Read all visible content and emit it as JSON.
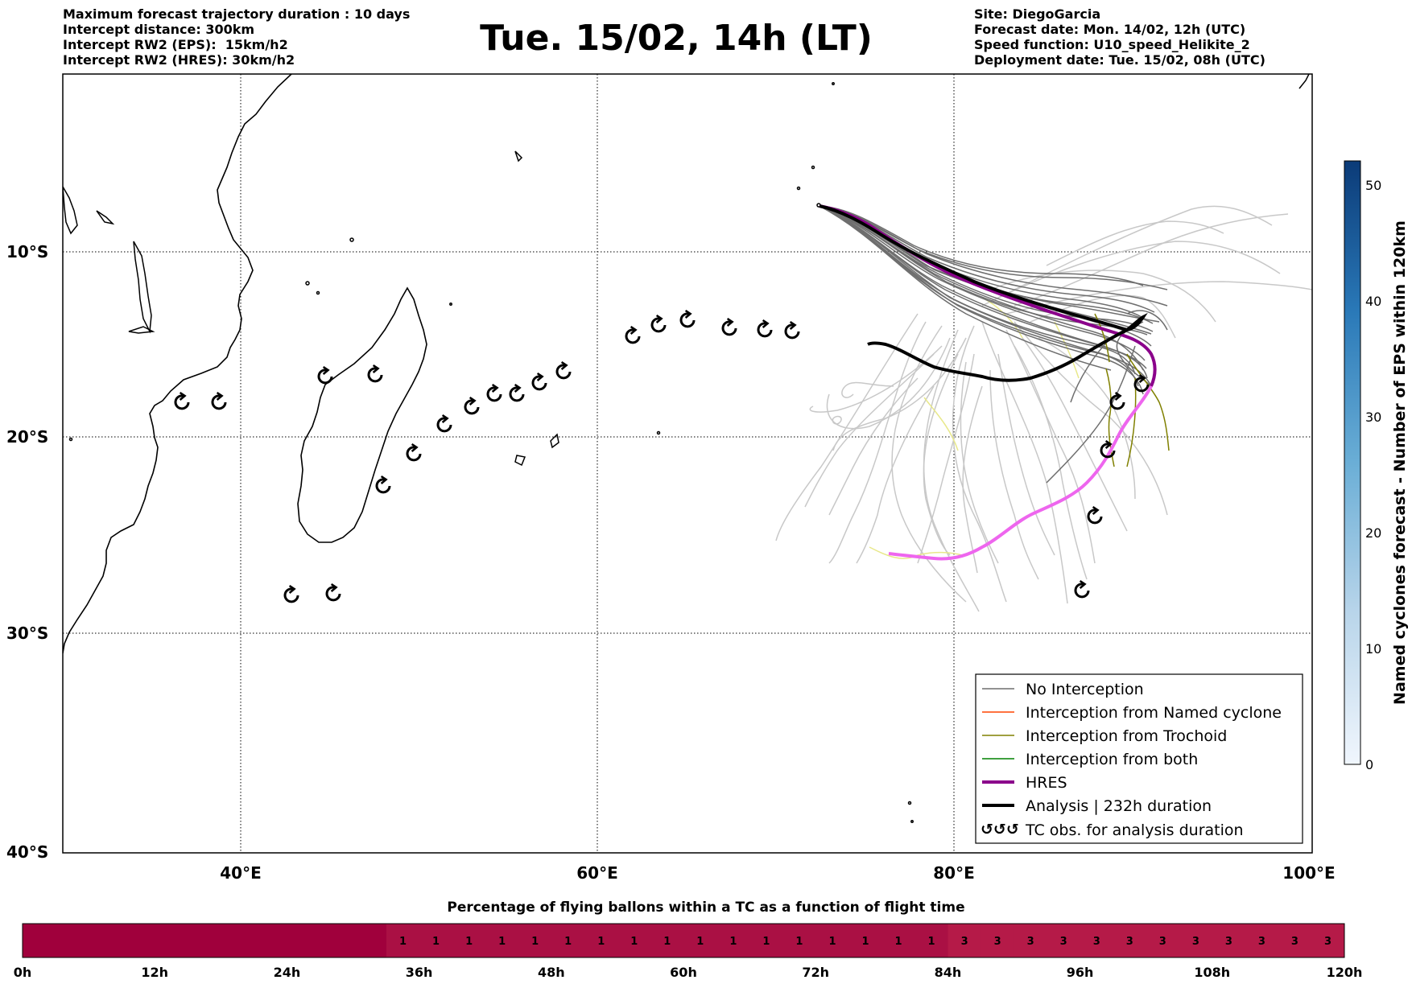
{
  "header": {
    "left_lines": [
      "Maximum forecast trajectory duration : 10 days",
      "Intercept distance: 300km",
      "Intercept RW2 (EPS):  15km/h2",
      "Intercept RW2 (HRES): 30km/h2"
    ],
    "title": "Tue. 15/02, 14h (LT)",
    "right_lines": [
      "Site: DiegoGarcia",
      "Forecast date: Mon. 14/02, 12h (UTC)",
      "Speed function: U10_speed_Helikite_2",
      "Deployment date: Tue. 15/02, 08h (UTC)"
    ]
  },
  "map": {
    "lat_labels": [
      "10°S",
      "20°S",
      "30°S",
      "40°S"
    ],
    "lon_labels": [
      "40°E",
      "60°E",
      "80°E",
      "100°E"
    ],
    "colors": {
      "no_interception": "#6e6e6e",
      "faint_members": "#c8c8c8",
      "named_cyclone": "#ff4500",
      "trochoid": "#808000",
      "both": "#008000",
      "hres": "#8b008b",
      "hres_late": "#ee66ee",
      "analysis": "#000000"
    }
  },
  "legend": {
    "items": [
      "No Interception",
      "Interception from Named cyclone",
      "Interception from Trochoid",
      "Interception from both",
      "HRES",
      "Analysis | 232h duration",
      "TC obs. for analysis duration"
    ],
    "tc_symbol": "↺↺↺"
  },
  "colorbar": {
    "title": "Named cyclones forecast - Number of EPS within 120km",
    "ticks": [
      "0",
      "10",
      "20",
      "30",
      "40",
      "50"
    ],
    "range": [
      0,
      52
    ]
  },
  "timebar": {
    "title": "Percentage of flying ballons within a TC as a function of flight time",
    "ticks": [
      "0h",
      "12h",
      "24h",
      "36h",
      "48h",
      "60h",
      "72h",
      "84h",
      "96h",
      "108h",
      "120h"
    ],
    "cells": [
      "",
      "",
      "",
      "",
      "",
      "",
      "",
      "",
      "",
      "",
      "1",
      "1",
      "1",
      "1",
      "1",
      "1",
      "1",
      "1",
      "1",
      "1",
      "1",
      "1",
      "1",
      "1",
      "1",
      "1",
      "1",
      "3",
      "3",
      "3",
      "3",
      "3",
      "3",
      "3",
      "3",
      "3",
      "3",
      "3",
      "3"
    ],
    "colors": {
      "zero": "#a0003c",
      "one": "#aa1044",
      "three": "#b51a48"
    }
  }
}
